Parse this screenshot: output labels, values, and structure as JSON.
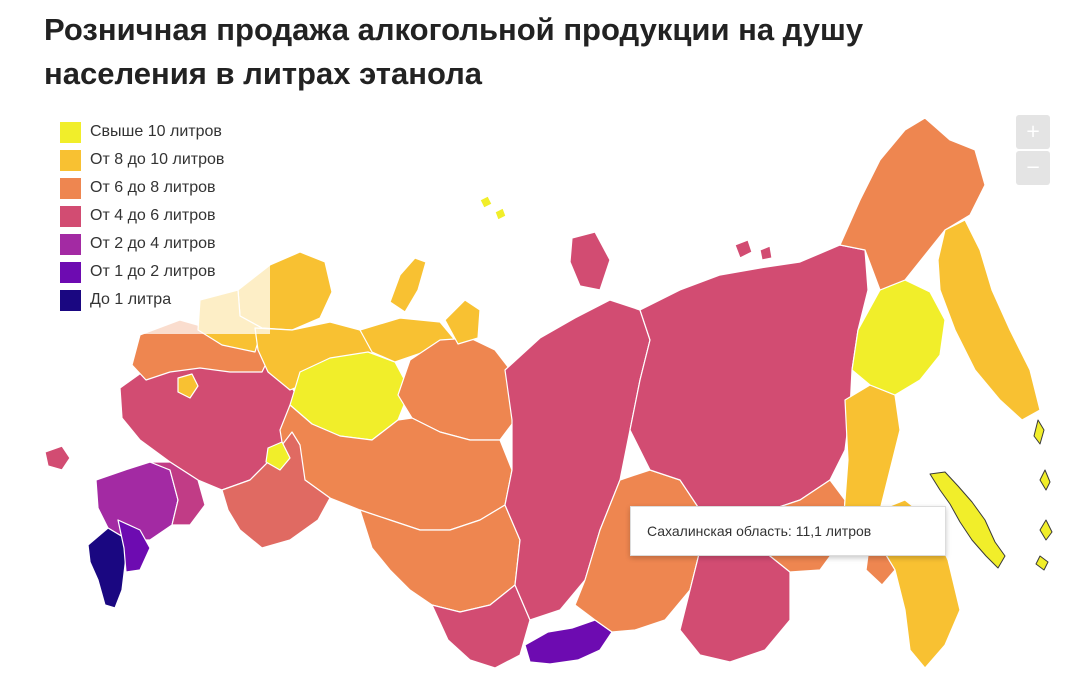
{
  "title": "Розничная продажа алкогольной продукции на душу населения в литрах этанола",
  "legend": [
    {
      "label": "Свыше 10 литров",
      "color": "#f1ee2a"
    },
    {
      "label": "От 8 до 10 литров",
      "color": "#f8c132"
    },
    {
      "label": "От 6 до 8 литров",
      "color": "#ee8650"
    },
    {
      "label": "От 4 до 6 литров",
      "color": "#d24c72"
    },
    {
      "label": "От 2 до 4 литров",
      "color": "#a32aa3"
    },
    {
      "label": "От 1 до 2 литров",
      "color": "#6d0bb1"
    },
    {
      "label": "До 1 литра",
      "color": "#1a0781"
    }
  ],
  "zoom": {
    "in_label": "+",
    "out_label": "−"
  },
  "tooltip": {
    "text": "Сахалинская область: 11,1 литров"
  },
  "colors": {
    "border": "#ffffff",
    "tooltip_border": "#dcdcdc"
  }
}
